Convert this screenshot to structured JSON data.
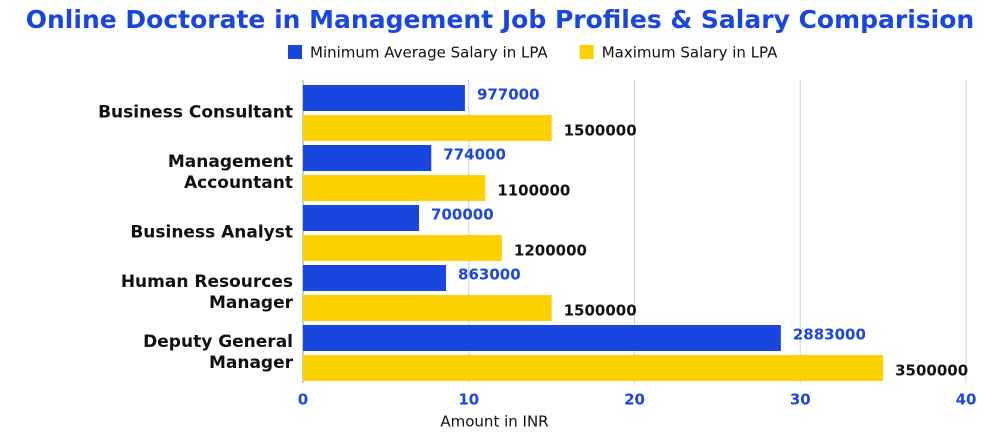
{
  "chart_data": {
    "type": "hbar",
    "title": "Online Doctorate  in Management Job Profiles & Salary Comparision",
    "categories": [
      "Business Consultant",
      "Management\nAccountant",
      "Business Analyst",
      "Human Resources\nManager",
      "Deputy General\nManager"
    ],
    "series": [
      {
        "name": "Minimum Average Salary in LPA",
        "color": "#1a46e0",
        "values": [
          9.77,
          7.74,
          7.0,
          8.63,
          28.83
        ],
        "value_labels": [
          "977000",
          "774000",
          "700000",
          "863000",
          "2883000"
        ],
        "label_color": "#1a46e0"
      },
      {
        "name": "Maximum Salary in LPA",
        "color": "#ffd100",
        "values": [
          15,
          11,
          12,
          15,
          35
        ],
        "value_labels": [
          "1500000",
          "1100000",
          "1200000",
          "1500000",
          "3500000"
        ],
        "label_color": "#111111"
      }
    ],
    "xlabel": "Amount in INR",
    "xlim": [
      0,
      40
    ],
    "xticks": [
      0,
      10,
      20,
      30,
      40
    ],
    "grid": true
  }
}
